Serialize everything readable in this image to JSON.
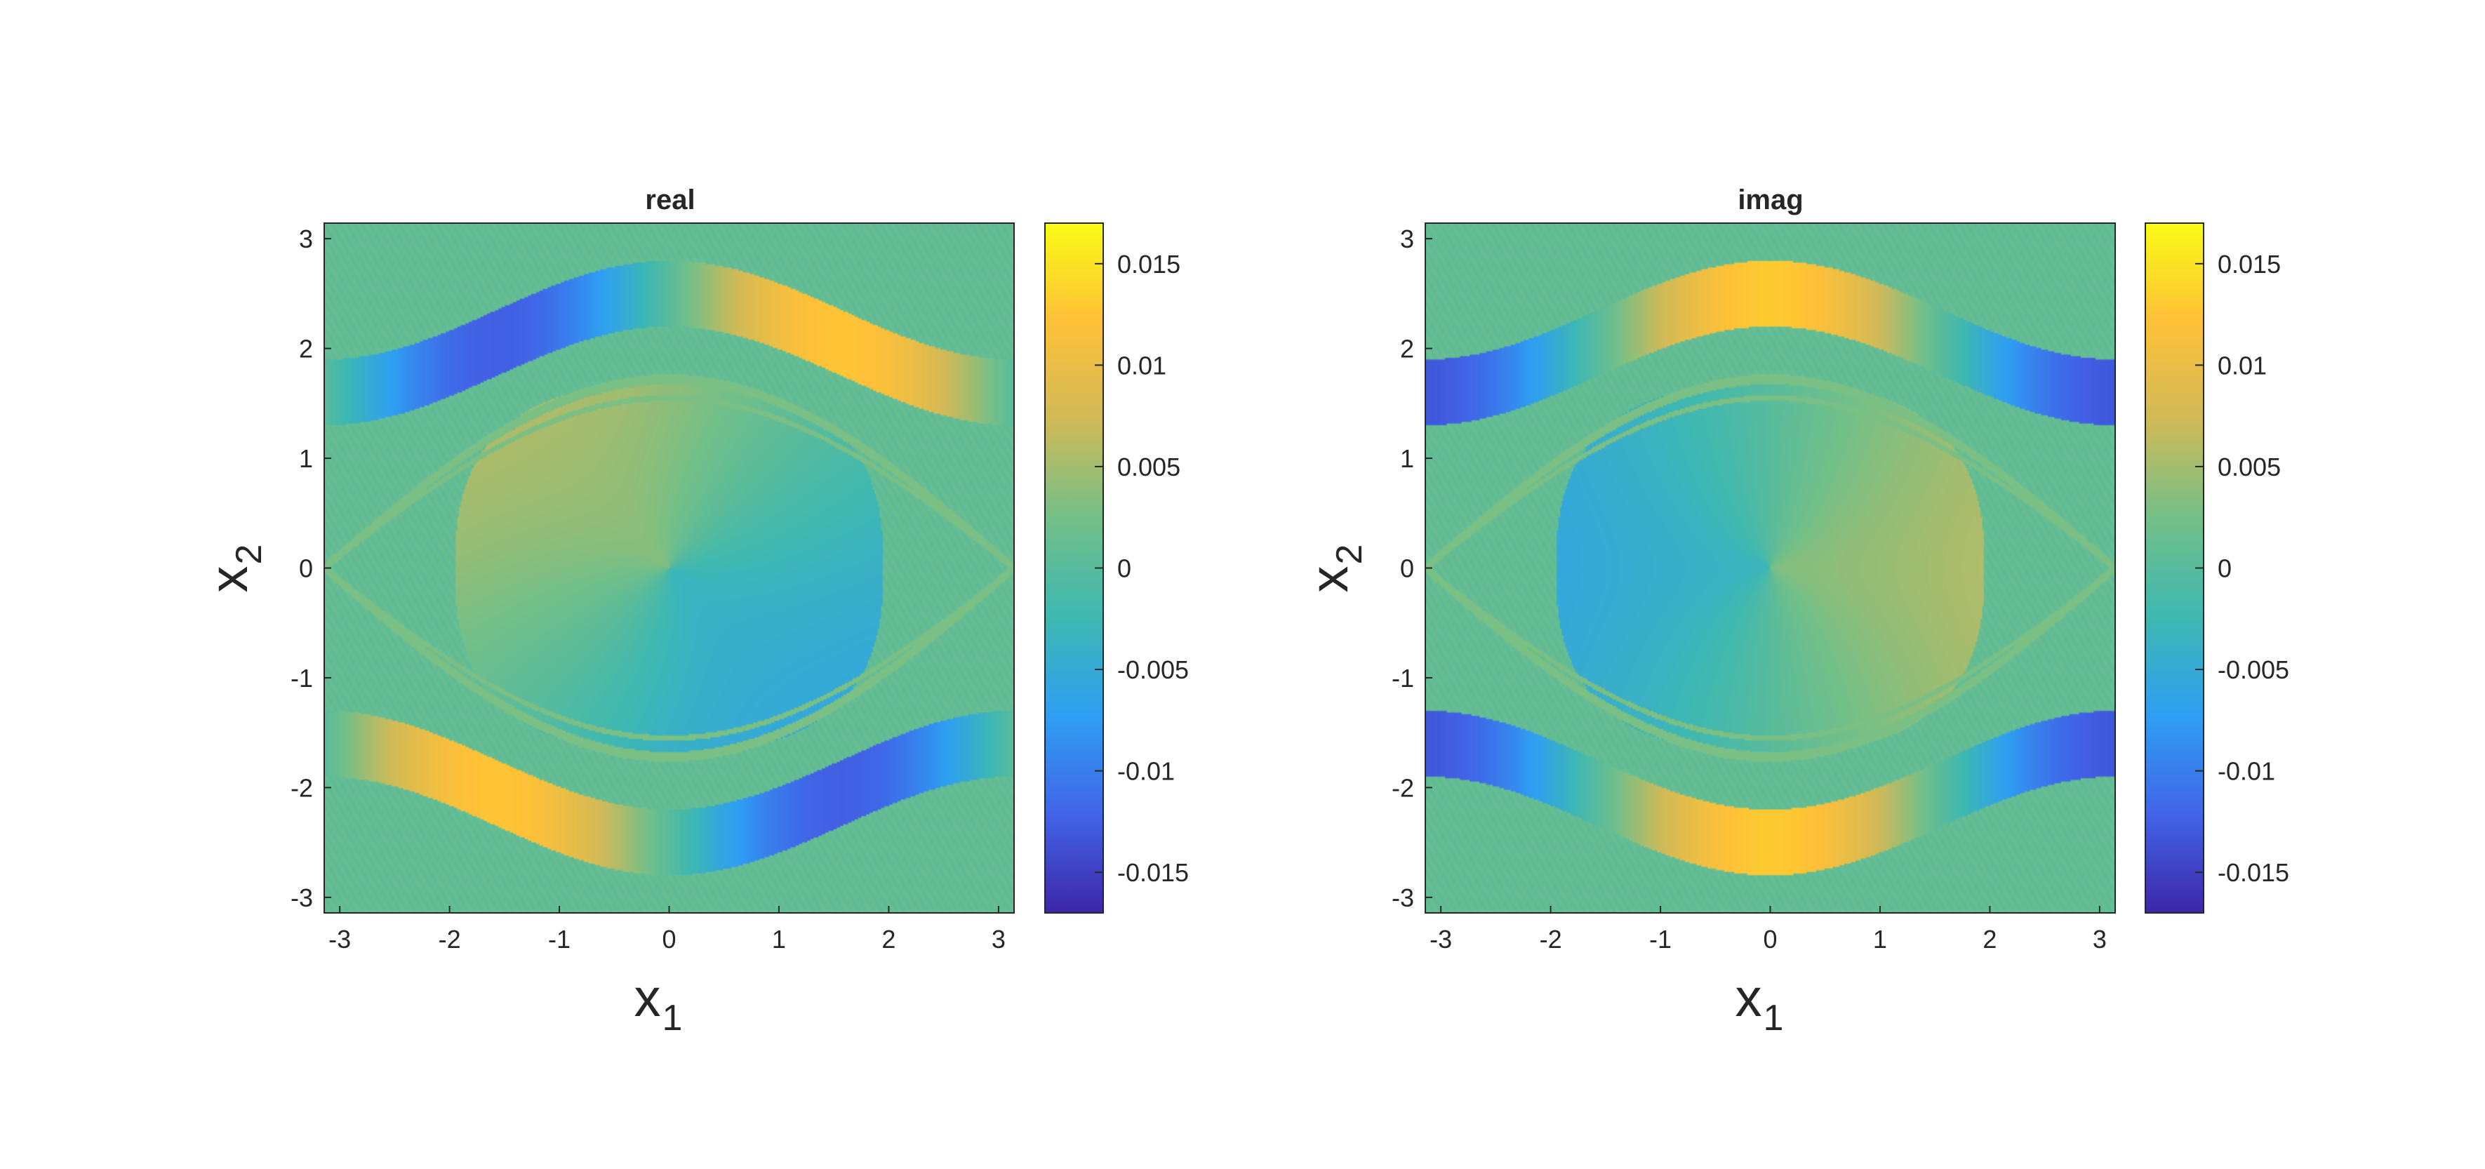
{
  "chart_data": [
    {
      "type": "heatmap",
      "title": "real",
      "xlabel": "x",
      "xlabel_subscript": "1",
      "ylabel": "x",
      "ylabel_subscript": "2",
      "xlim": [
        -3.1416,
        3.1416
      ],
      "ylim": [
        -3.1416,
        3.1416
      ],
      "xticks": [
        "-3",
        "-2",
        "-1",
        "0",
        "1",
        "2",
        "3"
      ],
      "yticks": [
        "3",
        "2",
        "1",
        "0",
        "-1",
        "-2",
        "-3"
      ],
      "colorbar": {
        "clim": [
          -0.017,
          0.017
        ],
        "ticks": [
          "0.015",
          "0.01",
          "0.005",
          "0",
          "-0.005",
          "-0.01",
          "-0.015"
        ]
      },
      "colormap": [
        "#3e26a8",
        "#4164e7",
        "#2e9ff2",
        "#3eb8b1",
        "#73bf88",
        "#d0ba58",
        "#fec038",
        "#f9fb15"
      ],
      "background_value": 0.001,
      "regions": {
        "inner": {
          "a": 1.95,
          "b": 1.68,
          "amp": 0.0056,
          "phase": 2.36
        },
        "band": {
          "amp": 0.0125,
          "phase": 0.0,
          "ymid": 2.05,
          "swing": 0.45,
          "halfwidth": 0.3
        }
      }
    },
    {
      "type": "heatmap",
      "title": "imag",
      "xlabel": "x",
      "xlabel_subscript": "1",
      "ylabel": "x",
      "ylabel_subscript": "2",
      "xlim": [
        -3.1416,
        3.1416
      ],
      "ylim": [
        -3.1416,
        3.1416
      ],
      "xticks": [
        "-3",
        "-2",
        "-1",
        "0",
        "1",
        "2",
        "3"
      ],
      "yticks": [
        "3",
        "2",
        "1",
        "0",
        "-1",
        "-2",
        "-3"
      ],
      "colorbar": {
        "clim": [
          -0.017,
          0.017
        ],
        "ticks": [
          "0.015",
          "0.01",
          "0.005",
          "0",
          "-0.005",
          "-0.01",
          "-0.015"
        ]
      },
      "colormap": [
        "#3e26a8",
        "#4164e7",
        "#2e9ff2",
        "#3eb8b1",
        "#73bf88",
        "#d0ba58",
        "#fec038",
        "#f9fb15"
      ],
      "background_value": 0.001,
      "regions": {
        "inner": {
          "a": 1.95,
          "b": 1.68,
          "amp": 0.0056,
          "phase": 0.0
        },
        "band": {
          "amp": 0.013,
          "phase": 1.5708,
          "ymid": 2.05,
          "swing": 0.45,
          "halfwidth": 0.3
        }
      }
    }
  ]
}
